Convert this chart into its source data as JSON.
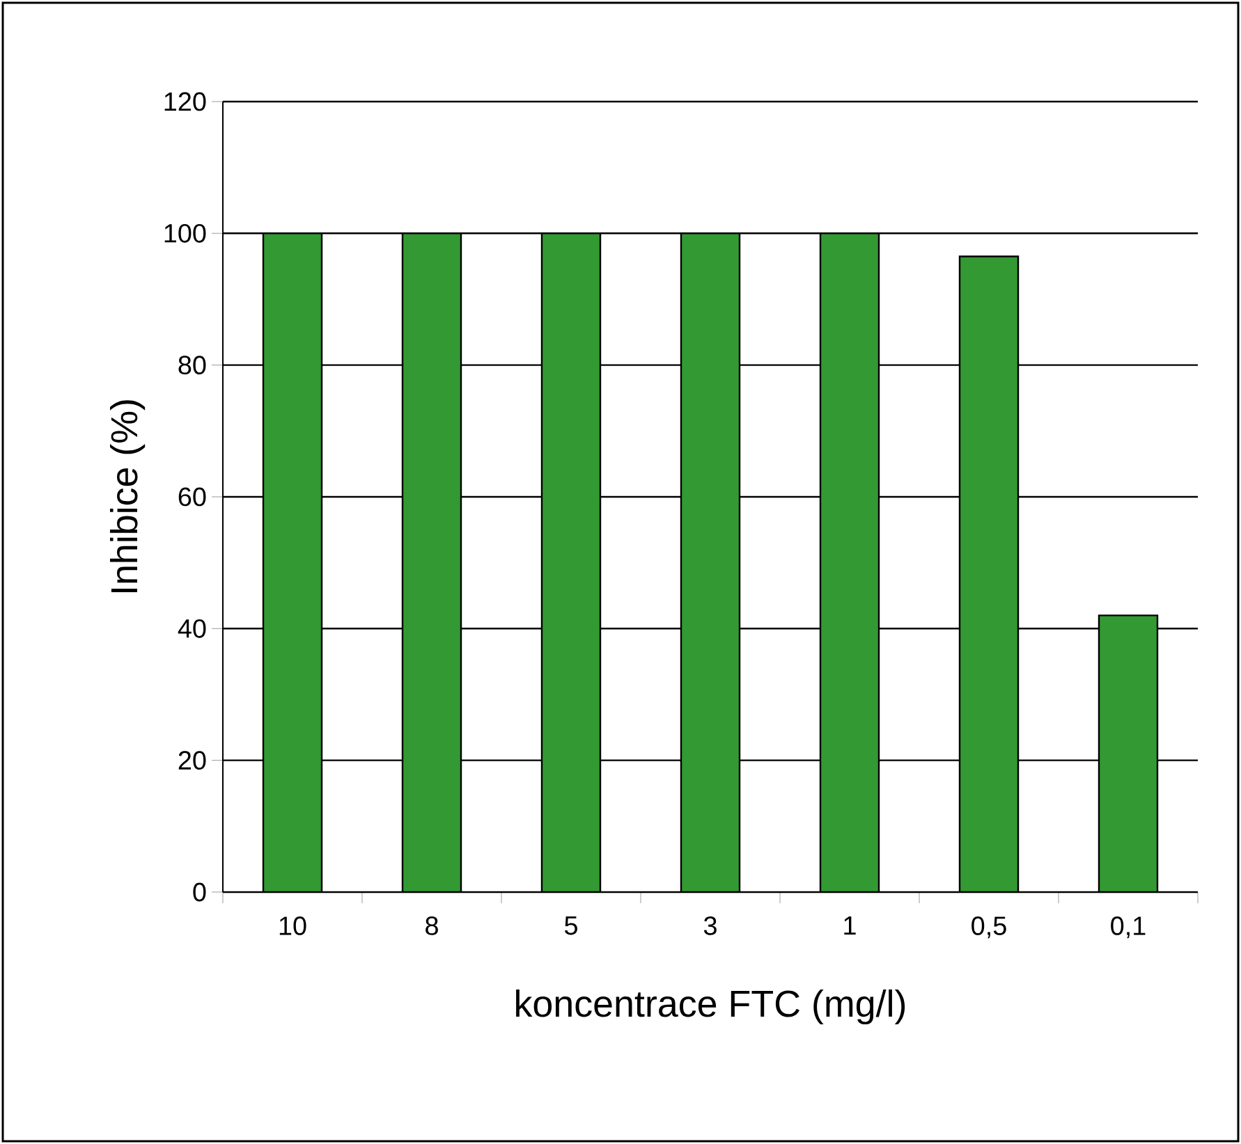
{
  "chart_data": {
    "type": "bar",
    "xlabel": "koncentrace FTC (mg/l)",
    "ylabel": "Inhibice (%)",
    "categories": [
      "10",
      "8",
      "5",
      "3",
      "1",
      "0,5",
      "0,1"
    ],
    "values": [
      100,
      100,
      100,
      100,
      100,
      96.5,
      42
    ],
    "color": "#339933",
    "ylim": [
      0,
      120
    ],
    "yticks": [
      0,
      20,
      40,
      60,
      80,
      100,
      120
    ],
    "grid": "y"
  }
}
